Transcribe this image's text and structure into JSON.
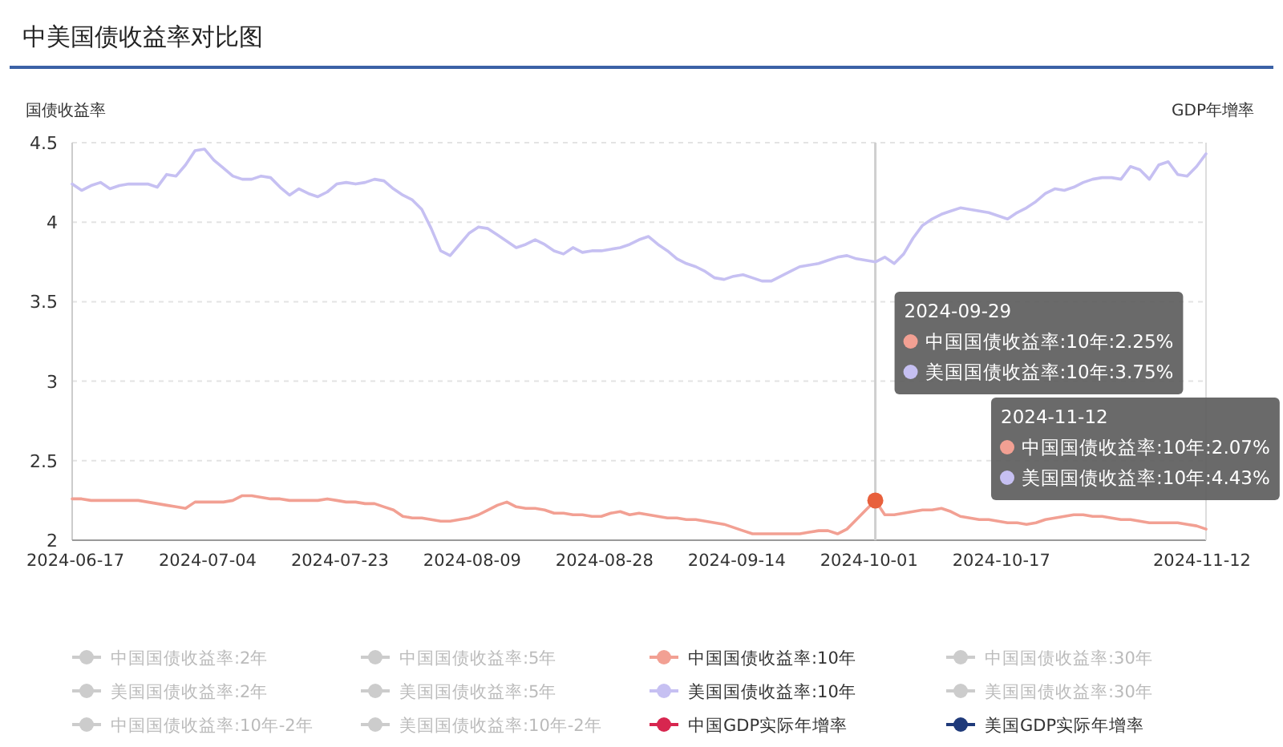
{
  "chart_data": {
    "type": "line",
    "title": "中美国债收益率对比图",
    "ylabel": "国债收益率",
    "y2label": "GDP年增率",
    "categories": [
      "2024-06-17",
      null,
      null,
      null,
      null,
      null,
      null,
      null,
      null,
      null,
      null,
      null,
      null,
      null,
      "2024-07-04",
      null,
      null,
      null,
      null,
      null,
      null,
      null,
      null,
      null,
      null,
      null,
      null,
      null,
      "2024-07-23",
      null,
      null,
      null,
      null,
      null,
      null,
      null,
      null,
      null,
      null,
      null,
      null,
      null,
      "2024-08-09",
      null,
      null,
      null,
      null,
      null,
      null,
      null,
      null,
      null,
      null,
      null,
      null,
      null,
      "2024-08-28",
      null,
      null,
      null,
      null,
      null,
      null,
      null,
      null,
      null,
      null,
      null,
      null,
      null,
      "2024-09-14",
      null,
      null,
      null,
      null,
      null,
      null,
      null,
      null,
      null,
      null,
      null,
      null,
      null,
      "2024-10-01",
      null,
      null,
      null,
      null,
      null,
      null,
      null,
      null,
      null,
      null,
      null,
      null,
      null,
      "2024-10-17",
      null,
      null,
      null,
      null,
      null,
      null,
      null,
      null,
      null,
      null,
      null,
      null,
      null,
      null,
      null,
      null,
      null,
      null,
      null,
      null,
      null,
      "2024-11-12"
    ],
    "ylim": [
      2,
      4.5
    ],
    "yticks": [
      2,
      2.5,
      3,
      3.5,
      4,
      4.5
    ],
    "grid": "y",
    "legend": "bottom",
    "marker": "none",
    "line_style": "solid",
    "series": [
      {
        "name": "中国国债收益率:2年",
        "color": "#cccccc",
        "values": [
          null,
          null,
          null,
          null,
          null,
          null,
          null,
          null,
          null,
          null,
          null,
          null,
          null,
          null,
          null,
          null,
          null,
          null,
          null,
          null,
          null,
          null,
          null,
          null,
          null,
          null,
          null,
          null,
          null,
          null,
          null,
          null,
          null,
          null,
          null,
          null,
          null,
          null,
          null,
          null,
          null,
          null,
          null,
          null,
          null,
          null,
          null,
          null,
          null,
          null,
          null,
          null,
          null,
          null,
          null,
          null,
          null,
          null,
          null,
          null,
          null,
          null,
          null,
          null,
          null,
          null,
          null,
          null,
          null,
          null,
          null,
          null,
          null,
          null,
          null,
          null,
          null,
          null,
          null,
          null,
          null,
          null,
          null,
          null,
          null,
          null,
          null,
          null,
          null,
          null,
          null,
          null,
          null,
          null,
          null,
          null,
          null,
          null,
          null,
          null,
          null,
          null,
          null,
          null,
          null,
          null,
          null,
          null,
          null,
          null,
          null,
          null,
          null,
          null,
          null,
          null,
          null,
          null,
          null,
          null,
          null
        ]
      },
      {
        "name": "中国国债收益率:5年",
        "color": "#cccccc",
        "values": [
          null,
          null,
          null,
          null,
          null,
          null,
          null,
          null,
          null,
          null,
          null,
          null,
          null,
          null,
          null,
          null,
          null,
          null,
          null,
          null,
          null,
          null,
          null,
          null,
          null,
          null,
          null,
          null,
          null,
          null,
          null,
          null,
          null,
          null,
          null,
          null,
          null,
          null,
          null,
          null,
          null,
          null,
          null,
          null,
          null,
          null,
          null,
          null,
          null,
          null,
          null,
          null,
          null,
          null,
          null,
          null,
          null,
          null,
          null,
          null,
          null,
          null,
          null,
          null,
          null,
          null,
          null,
          null,
          null,
          null,
          null,
          null,
          null,
          null,
          null,
          null,
          null,
          null,
          null,
          null,
          null,
          null,
          null,
          null,
          null,
          null,
          null,
          null,
          null,
          null,
          null,
          null,
          null,
          null,
          null,
          null,
          null,
          null,
          null,
          null,
          null,
          null,
          null,
          null,
          null,
          null,
          null,
          null,
          null,
          null,
          null,
          null,
          null,
          null,
          null,
          null,
          null,
          null,
          null,
          null,
          null
        ]
      },
      {
        "name": "中国国债收益率:10年",
        "color": "#f2a093",
        "values": [
          2.26,
          2.26,
          2.25,
          2.25,
          2.25,
          2.25,
          2.25,
          2.25,
          2.24,
          2.23,
          2.22,
          2.21,
          2.2,
          2.24,
          2.24,
          2.24,
          2.24,
          2.25,
          2.28,
          2.28,
          2.27,
          2.26,
          2.26,
          2.25,
          2.25,
          2.25,
          2.25,
          2.26,
          2.25,
          2.24,
          2.24,
          2.23,
          2.23,
          2.21,
          2.19,
          2.15,
          2.14,
          2.14,
          2.13,
          2.12,
          2.12,
          2.13,
          2.14,
          2.16,
          2.19,
          2.22,
          2.24,
          2.21,
          2.2,
          2.2,
          2.19,
          2.17,
          2.17,
          2.16,
          2.16,
          2.15,
          2.15,
          2.17,
          2.18,
          2.16,
          2.17,
          2.16,
          2.15,
          2.14,
          2.14,
          2.13,
          2.13,
          2.12,
          2.11,
          2.1,
          2.08,
          2.06,
          2.04,
          2.04,
          2.04,
          2.04,
          2.04,
          2.04,
          2.05,
          2.06,
          2.06,
          2.04,
          2.07,
          2.13,
          2.19,
          2.25,
          2.16,
          2.16,
          2.17,
          2.18,
          2.19,
          2.19,
          2.2,
          2.18,
          2.15,
          2.14,
          2.13,
          2.13,
          2.12,
          2.11,
          2.11,
          2.1,
          2.11,
          2.13,
          2.14,
          2.15,
          2.16,
          2.16,
          2.15,
          2.15,
          2.14,
          2.13,
          2.13,
          2.12,
          2.11,
          2.11,
          2.11,
          2.11,
          2.1,
          2.09,
          2.07
        ]
      },
      {
        "name": "中国国债收益率:30年",
        "color": "#cccccc",
        "values": [
          null,
          null,
          null,
          null,
          null,
          null,
          null,
          null,
          null,
          null,
          null,
          null,
          null,
          null,
          null,
          null,
          null,
          null,
          null,
          null,
          null,
          null,
          null,
          null,
          null,
          null,
          null,
          null,
          null,
          null,
          null,
          null,
          null,
          null,
          null,
          null,
          null,
          null,
          null,
          null,
          null,
          null,
          null,
          null,
          null,
          null,
          null,
          null,
          null,
          null,
          null,
          null,
          null,
          null,
          null,
          null,
          null,
          null,
          null,
          null,
          null,
          null,
          null,
          null,
          null,
          null,
          null,
          null,
          null,
          null,
          null,
          null,
          null,
          null,
          null,
          null,
          null,
          null,
          null,
          null,
          null,
          null,
          null,
          null,
          null,
          null,
          null,
          null,
          null,
          null,
          null,
          null,
          null,
          null,
          null,
          null,
          null,
          null,
          null,
          null,
          null,
          null,
          null,
          null,
          null,
          null,
          null,
          null,
          null,
          null,
          null,
          null,
          null,
          null,
          null,
          null,
          null,
          null,
          null,
          null,
          null
        ]
      },
      {
        "name": "美国国债收益率:2年",
        "color": "#cccccc",
        "values": [
          null,
          null,
          null,
          null,
          null,
          null,
          null,
          null,
          null,
          null,
          null,
          null,
          null,
          null,
          null,
          null,
          null,
          null,
          null,
          null,
          null,
          null,
          null,
          null,
          null,
          null,
          null,
          null,
          null,
          null,
          null,
          null,
          null,
          null,
          null,
          null,
          null,
          null,
          null,
          null,
          null,
          null,
          null,
          null,
          null,
          null,
          null,
          null,
          null,
          null,
          null,
          null,
          null,
          null,
          null,
          null,
          null,
          null,
          null,
          null,
          null,
          null,
          null,
          null,
          null,
          null,
          null,
          null,
          null,
          null,
          null,
          null,
          null,
          null,
          null,
          null,
          null,
          null,
          null,
          null,
          null,
          null,
          null,
          null,
          null,
          null,
          null,
          null,
          null,
          null,
          null,
          null,
          null,
          null,
          null,
          null,
          null,
          null,
          null,
          null,
          null,
          null,
          null,
          null,
          null,
          null,
          null,
          null,
          null,
          null,
          null,
          null,
          null,
          null,
          null,
          null,
          null,
          null,
          null,
          null,
          null
        ]
      },
      {
        "name": "美国国债收益率:5年",
        "color": "#cccccc",
        "values": [
          null,
          null,
          null,
          null,
          null,
          null,
          null,
          null,
          null,
          null,
          null,
          null,
          null,
          null,
          null,
          null,
          null,
          null,
          null,
          null,
          null,
          null,
          null,
          null,
          null,
          null,
          null,
          null,
          null,
          null,
          null,
          null,
          null,
          null,
          null,
          null,
          null,
          null,
          null,
          null,
          null,
          null,
          null,
          null,
          null,
          null,
          null,
          null,
          null,
          null,
          null,
          null,
          null,
          null,
          null,
          null,
          null,
          null,
          null,
          null,
          null,
          null,
          null,
          null,
          null,
          null,
          null,
          null,
          null,
          null,
          null,
          null,
          null,
          null,
          null,
          null,
          null,
          null,
          null,
          null,
          null,
          null,
          null,
          null,
          null,
          null,
          null,
          null,
          null,
          null,
          null,
          null,
          null,
          null,
          null,
          null,
          null,
          null,
          null,
          null,
          null,
          null,
          null,
          null,
          null,
          null,
          null,
          null,
          null,
          null,
          null,
          null,
          null,
          null,
          null,
          null,
          null,
          null,
          null,
          null,
          null
        ]
      },
      {
        "name": "美国国债收益率:10年",
        "color": "#c6c0f2",
        "values": [
          4.24,
          4.2,
          4.23,
          4.25,
          4.21,
          4.23,
          4.24,
          4.24,
          4.24,
          4.22,
          4.3,
          4.29,
          4.36,
          4.45,
          4.46,
          4.39,
          4.34,
          4.29,
          4.27,
          4.27,
          4.29,
          4.28,
          4.22,
          4.17,
          4.21,
          4.18,
          4.16,
          4.19,
          4.24,
          4.25,
          4.24,
          4.25,
          4.27,
          4.26,
          4.21,
          4.17,
          4.14,
          4.08,
          3.96,
          3.82,
          3.79,
          3.86,
          3.93,
          3.97,
          3.96,
          3.92,
          3.88,
          3.84,
          3.86,
          3.89,
          3.86,
          3.82,
          3.8,
          3.84,
          3.81,
          3.82,
          3.82,
          3.83,
          3.84,
          3.86,
          3.89,
          3.91,
          3.86,
          3.82,
          3.77,
          3.74,
          3.72,
          3.69,
          3.65,
          3.64,
          3.66,
          3.67,
          3.65,
          3.63,
          3.63,
          3.66,
          3.69,
          3.72,
          3.73,
          3.74,
          3.76,
          3.78,
          3.79,
          3.77,
          3.76,
          3.75,
          3.78,
          3.74,
          3.8,
          3.9,
          3.98,
          4.02,
          4.05,
          4.07,
          4.09,
          4.08,
          4.07,
          4.06,
          4.04,
          4.02,
          4.06,
          4.09,
          4.13,
          4.18,
          4.21,
          4.2,
          4.22,
          4.25,
          4.27,
          4.28,
          4.28,
          4.27,
          4.35,
          4.33,
          4.27,
          4.36,
          4.38,
          4.3,
          4.29,
          4.35,
          4.43
        ]
      },
      {
        "name": "美国国债收益率:30年",
        "color": "#cccccc",
        "values": [
          null,
          null,
          null,
          null,
          null,
          null,
          null,
          null,
          null,
          null,
          null,
          null,
          null,
          null,
          null,
          null,
          null,
          null,
          null,
          null,
          null,
          null,
          null,
          null,
          null,
          null,
          null,
          null,
          null,
          null,
          null,
          null,
          null,
          null,
          null,
          null,
          null,
          null,
          null,
          null,
          null,
          null,
          null,
          null,
          null,
          null,
          null,
          null,
          null,
          null,
          null,
          null,
          null,
          null,
          null,
          null,
          null,
          null,
          null,
          null,
          null,
          null,
          null,
          null,
          null,
          null,
          null,
          null,
          null,
          null,
          null,
          null,
          null,
          null,
          null,
          null,
          null,
          null,
          null,
          null,
          null,
          null,
          null,
          null,
          null,
          null,
          null,
          null,
          null,
          null,
          null,
          null,
          null,
          null,
          null,
          null,
          null,
          null,
          null,
          null,
          null,
          null,
          null,
          null,
          null,
          null,
          null,
          null,
          null,
          null,
          null,
          null,
          null,
          null,
          null,
          null,
          null,
          null,
          null,
          null,
          null
        ]
      },
      {
        "name": "中国国债收益率:10年-2年",
        "color": "#cccccc",
        "values": [
          null,
          null,
          null,
          null,
          null,
          null,
          null,
          null,
          null,
          null,
          null,
          null,
          null,
          null,
          null,
          null,
          null,
          null,
          null,
          null,
          null,
          null,
          null,
          null,
          null,
          null,
          null,
          null,
          null,
          null,
          null,
          null,
          null,
          null,
          null,
          null,
          null,
          null,
          null,
          null,
          null,
          null,
          null,
          null,
          null,
          null,
          null,
          null,
          null,
          null,
          null,
          null,
          null,
          null,
          null,
          null,
          null,
          null,
          null,
          null,
          null,
          null,
          null,
          null,
          null,
          null,
          null,
          null,
          null,
          null,
          null,
          null,
          null,
          null,
          null,
          null,
          null,
          null,
          null,
          null,
          null,
          null,
          null,
          null,
          null,
          null,
          null,
          null,
          null,
          null,
          null,
          null,
          null,
          null,
          null,
          null,
          null,
          null,
          null,
          null,
          null,
          null,
          null,
          null,
          null,
          null,
          null,
          null,
          null,
          null,
          null,
          null,
          null,
          null,
          null,
          null,
          null,
          null,
          null,
          null,
          null
        ]
      },
      {
        "name": "美国国债收益率:10年-2年",
        "color": "#cccccc",
        "values": [
          null,
          null,
          null,
          null,
          null,
          null,
          null,
          null,
          null,
          null,
          null,
          null,
          null,
          null,
          null,
          null,
          null,
          null,
          null,
          null,
          null,
          null,
          null,
          null,
          null,
          null,
          null,
          null,
          null,
          null,
          null,
          null,
          null,
          null,
          null,
          null,
          null,
          null,
          null,
          null,
          null,
          null,
          null,
          null,
          null,
          null,
          null,
          null,
          null,
          null,
          null,
          null,
          null,
          null,
          null,
          null,
          null,
          null,
          null,
          null,
          null,
          null,
          null,
          null,
          null,
          null,
          null,
          null,
          null,
          null,
          null,
          null,
          null,
          null,
          null,
          null,
          null,
          null,
          null,
          null,
          null,
          null,
          null,
          null,
          null,
          null,
          null,
          null,
          null,
          null,
          null,
          null,
          null,
          null,
          null,
          null,
          null,
          null,
          null,
          null,
          null,
          null,
          null,
          null,
          null,
          null,
          null,
          null,
          null,
          null,
          null,
          null,
          null,
          null,
          null,
          null,
          null,
          null,
          null,
          null,
          null
        ]
      },
      {
        "name": "中国GDP实际年增率",
        "color": "#d7264f",
        "axis": "y2",
        "values": [
          null,
          null,
          null,
          null,
          null,
          null,
          null,
          null,
          null,
          null,
          null,
          null,
          null,
          null,
          null,
          null,
          null,
          null,
          null,
          null,
          null,
          null,
          null,
          null,
          null,
          null,
          null,
          null,
          null,
          null,
          null,
          null,
          null,
          null,
          null,
          null,
          null,
          null,
          null,
          null,
          null,
          null,
          null,
          null,
          null,
          null,
          null,
          null,
          null,
          null,
          null,
          null,
          null,
          null,
          null,
          null,
          null,
          null,
          null,
          null,
          null,
          null,
          null,
          null,
          null,
          null,
          null,
          null,
          null,
          null,
          null,
          null,
          null,
          null,
          null,
          null,
          null,
          null,
          null,
          null,
          null,
          null,
          null,
          null,
          null,
          null,
          null,
          null,
          null,
          null,
          null,
          null,
          null,
          null,
          null,
          null,
          null,
          null,
          null,
          null,
          null,
          null,
          null,
          null,
          null,
          null,
          null,
          null,
          null,
          null,
          null,
          null,
          null,
          null,
          null,
          null,
          null,
          null,
          null,
          null,
          null
        ]
      },
      {
        "name": "美国GDP实际年增率",
        "color": "#1f3a7a",
        "axis": "y2",
        "values": [
          null,
          null,
          null,
          null,
          null,
          null,
          null,
          null,
          null,
          null,
          null,
          null,
          null,
          null,
          null,
          null,
          null,
          null,
          null,
          null,
          null,
          null,
          null,
          null,
          null,
          null,
          null,
          null,
          null,
          null,
          null,
          null,
          null,
          null,
          null,
          null,
          null,
          null,
          null,
          null,
          null,
          null,
          null,
          null,
          null,
          null,
          null,
          null,
          null,
          null,
          null,
          null,
          null,
          null,
          null,
          null,
          null,
          null,
          null,
          null,
          null,
          null,
          null,
          null,
          null,
          null,
          null,
          null,
          null,
          null,
          null,
          null,
          null,
          null,
          null,
          null,
          null,
          null,
          null,
          null,
          null,
          null,
          null,
          null,
          null,
          null,
          null,
          null,
          null,
          null,
          null,
          null,
          null,
          null,
          null,
          null,
          null,
          null,
          null,
          null,
          null,
          null,
          null,
          null,
          null,
          null,
          null,
          null,
          null,
          null,
          null,
          null,
          null,
          null,
          null,
          null,
          null,
          null,
          null,
          null,
          null
        ]
      }
    ],
    "annotations": [
      "2024-09-29",
      "中国国债收益率:10年:2.25%",
      "美国国债收益率:10年:3.75%",
      "2024-11-12",
      "中国国债收益率:10年:2.07%",
      "美国国债收益率:10年:4.43%"
    ]
  }
}
